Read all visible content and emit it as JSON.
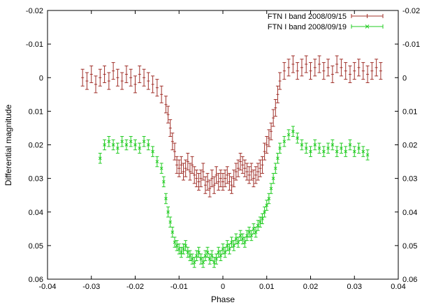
{
  "chart_data": {
    "type": "scatter",
    "title": "",
    "xlabel": "Phase",
    "ylabel": "Differential magnitude",
    "xlim": [
      -0.04,
      0.04
    ],
    "ylim": [
      -0.02,
      0.06
    ],
    "y_inverted": true,
    "x_ticks": [
      "-0.04",
      "-0.03",
      "-0.02",
      "-0.01",
      "0",
      "0.01",
      "0.02",
      "0.03",
      "0.04"
    ],
    "y_ticks": [
      "-0.02",
      "-0.01",
      "0",
      "0.01",
      "0.02",
      "0.03",
      "0.04",
      "0.05",
      "0.06"
    ],
    "y2_ticks": [
      "-0.02",
      "-0.01",
      "0",
      "0.01",
      "0.02",
      "0.03",
      "0.04",
      "0.05",
      "0.06"
    ],
    "legend_position": "top-right",
    "series": [
      {
        "name": "FTN I band 2008/09/15",
        "color": "#a0302a",
        "marker": "plus-with-errorbars",
        "x": [
          -0.032,
          -0.031,
          -0.03,
          -0.029,
          -0.028,
          -0.027,
          -0.026,
          -0.025,
          -0.024,
          -0.023,
          -0.022,
          -0.021,
          -0.02,
          -0.019,
          -0.018,
          -0.017,
          -0.016,
          -0.015,
          -0.014,
          -0.013,
          -0.0125,
          -0.012,
          -0.0115,
          -0.011,
          -0.0105,
          -0.01,
          -0.0095,
          -0.009,
          -0.0085,
          -0.008,
          -0.0075,
          -0.007,
          -0.0065,
          -0.006,
          -0.0055,
          -0.005,
          -0.0045,
          -0.004,
          -0.0035,
          -0.003,
          -0.0025,
          -0.002,
          -0.0015,
          -0.001,
          -0.0005,
          0.0,
          0.0005,
          0.001,
          0.0015,
          0.002,
          0.0025,
          0.003,
          0.0035,
          0.004,
          0.0045,
          0.005,
          0.0055,
          0.006,
          0.0065,
          0.007,
          0.0075,
          0.008,
          0.0085,
          0.009,
          0.0095,
          0.01,
          0.0105,
          0.011,
          0.0115,
          0.012,
          0.0125,
          0.013,
          0.014,
          0.015,
          0.016,
          0.017,
          0.018,
          0.019,
          0.02,
          0.021,
          0.022,
          0.023,
          0.024,
          0.025,
          0.026,
          0.027,
          0.028,
          0.029,
          0.03,
          0.031,
          0.032,
          0.033,
          0.034,
          0.035,
          0.036
        ],
        "y": [
          0.0,
          0.001,
          -0.001,
          0.002,
          0.0,
          -0.001,
          0.001,
          -0.002,
          0.0,
          0.001,
          -0.001,
          0.0,
          0.002,
          -0.001,
          0.0,
          0.001,
          0.002,
          0.003,
          0.005,
          0.008,
          0.011,
          0.015,
          0.019,
          0.022,
          0.026,
          0.027,
          0.026,
          0.028,
          0.027,
          0.025,
          0.028,
          0.026,
          0.029,
          0.03,
          0.031,
          0.03,
          0.028,
          0.032,
          0.031,
          0.033,
          0.03,
          0.032,
          0.029,
          0.031,
          0.03,
          0.031,
          0.03,
          0.029,
          0.031,
          0.032,
          0.03,
          0.028,
          0.027,
          0.025,
          0.026,
          0.027,
          0.028,
          0.029,
          0.028,
          0.03,
          0.029,
          0.028,
          0.027,
          0.026,
          0.022,
          0.02,
          0.018,
          0.016,
          0.012,
          0.009,
          0.005,
          0.001,
          -0.002,
          -0.003,
          -0.004,
          -0.002,
          -0.003,
          -0.004,
          -0.002,
          -0.003,
          -0.004,
          -0.002,
          -0.003,
          -0.001,
          -0.004,
          -0.003,
          -0.002,
          -0.001,
          -0.002,
          -0.003,
          -0.002,
          -0.001,
          -0.002,
          -0.003,
          -0.002
        ],
        "yerr": 0.0025
      },
      {
        "name": "FTN I band 2008/09/19",
        "color": "#22cc22",
        "marker": "cross-with-errorbars",
        "x": [
          -0.028,
          -0.027,
          -0.026,
          -0.025,
          -0.024,
          -0.023,
          -0.022,
          -0.021,
          -0.02,
          -0.019,
          -0.018,
          -0.017,
          -0.016,
          -0.015,
          -0.014,
          -0.0135,
          -0.013,
          -0.0125,
          -0.012,
          -0.0115,
          -0.011,
          -0.0105,
          -0.01,
          -0.0095,
          -0.009,
          -0.0085,
          -0.008,
          -0.0075,
          -0.007,
          -0.0065,
          -0.006,
          -0.0055,
          -0.005,
          -0.0045,
          -0.004,
          -0.0035,
          -0.003,
          -0.0025,
          -0.002,
          -0.0015,
          -0.001,
          -0.0005,
          0.0,
          0.0005,
          0.001,
          0.0015,
          0.002,
          0.0025,
          0.003,
          0.0035,
          0.004,
          0.0045,
          0.005,
          0.0055,
          0.006,
          0.0065,
          0.007,
          0.0075,
          0.008,
          0.0085,
          0.009,
          0.0095,
          0.01,
          0.0105,
          0.011,
          0.0115,
          0.012,
          0.0125,
          0.013,
          0.014,
          0.015,
          0.016,
          0.017,
          0.018,
          0.019,
          0.02,
          0.021,
          0.022,
          0.023,
          0.024,
          0.025,
          0.026,
          0.027,
          0.028,
          0.029,
          0.03,
          0.031,
          0.032,
          0.033
        ],
        "y": [
          0.024,
          0.02,
          0.019,
          0.02,
          0.021,
          0.019,
          0.02,
          0.019,
          0.02,
          0.021,
          0.019,
          0.02,
          0.022,
          0.025,
          0.027,
          0.031,
          0.036,
          0.04,
          0.043,
          0.046,
          0.049,
          0.05,
          0.051,
          0.052,
          0.051,
          0.05,
          0.052,
          0.053,
          0.054,
          0.055,
          0.053,
          0.052,
          0.054,
          0.055,
          0.053,
          0.052,
          0.054,
          0.053,
          0.055,
          0.054,
          0.052,
          0.053,
          0.051,
          0.052,
          0.05,
          0.051,
          0.049,
          0.05,
          0.048,
          0.049,
          0.047,
          0.048,
          0.049,
          0.047,
          0.046,
          0.047,
          0.045,
          0.046,
          0.044,
          0.043,
          0.042,
          0.04,
          0.038,
          0.036,
          0.033,
          0.03,
          0.027,
          0.024,
          0.021,
          0.019,
          0.017,
          0.016,
          0.018,
          0.02,
          0.021,
          0.022,
          0.02,
          0.021,
          0.022,
          0.021,
          0.02,
          0.022,
          0.021,
          0.022,
          0.02,
          0.022,
          0.021,
          0.022,
          0.023
        ],
        "yerr": 0.0015
      }
    ]
  }
}
